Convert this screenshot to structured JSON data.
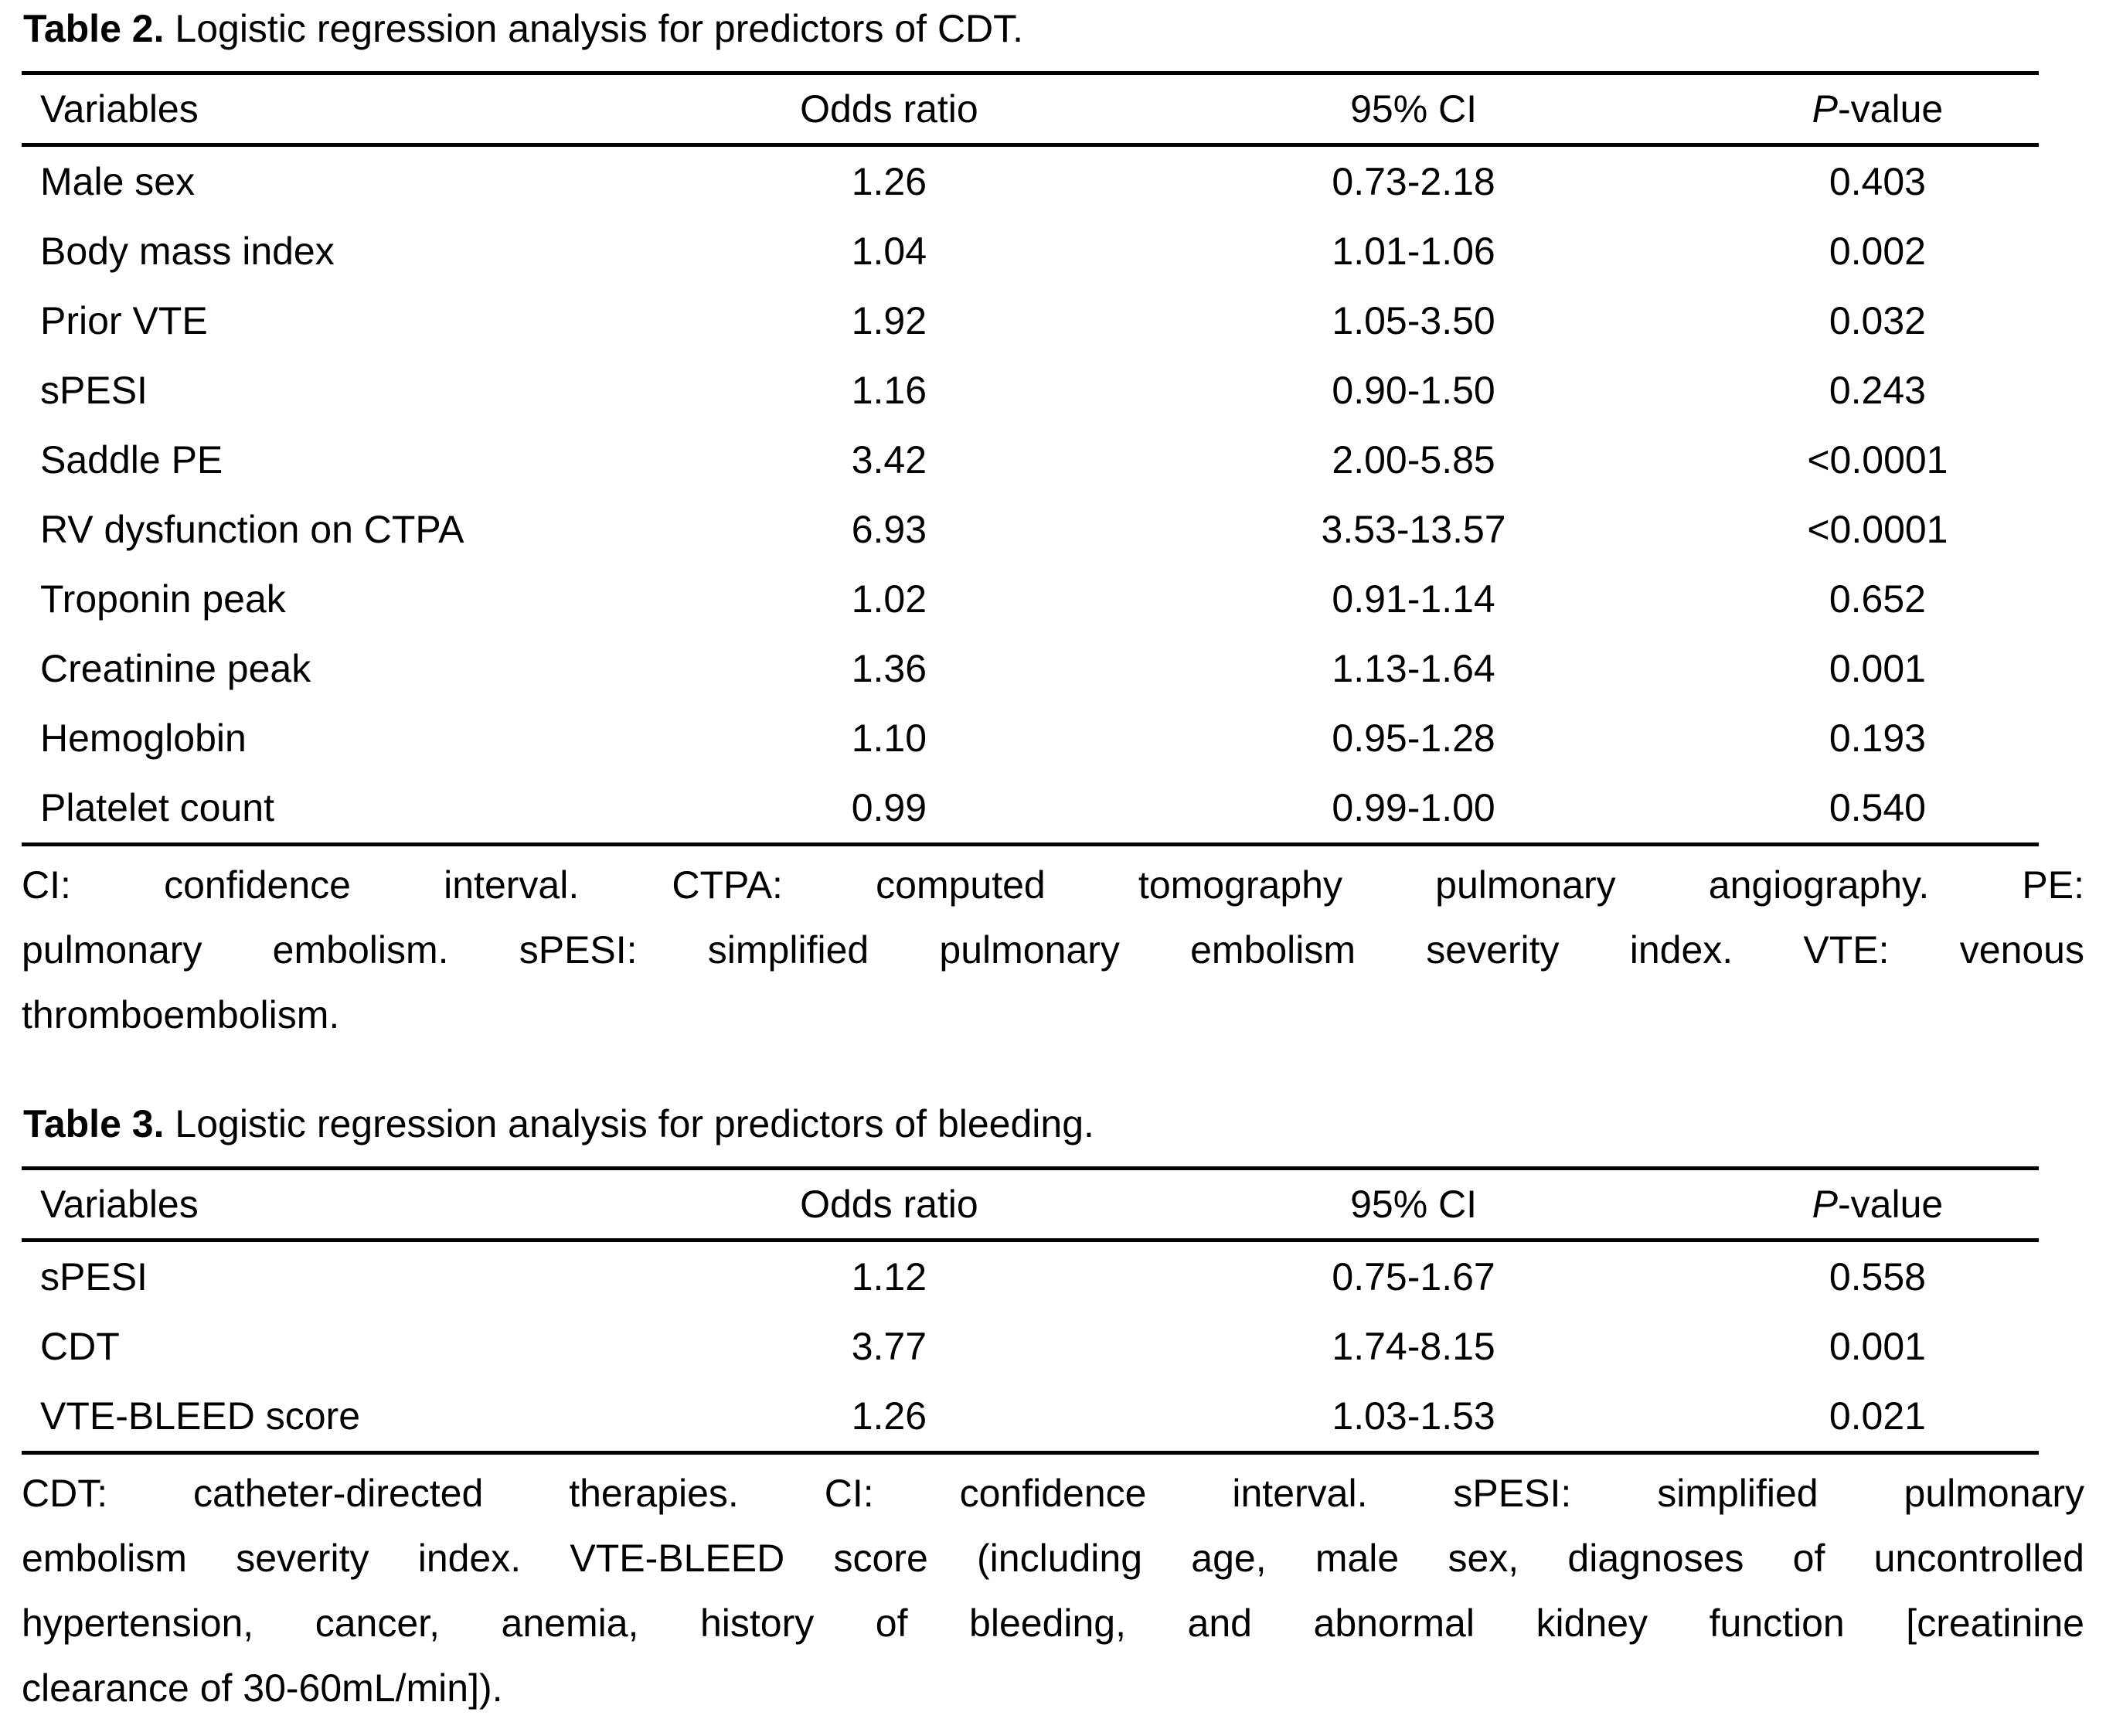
{
  "page": {
    "background_color": "#ffffff",
    "text_color": "#000000"
  },
  "table2": {
    "title_label": "Table 2.",
    "title_text": "Logistic regression analysis for predictors of CDT.",
    "headers": {
      "variables": "Variables",
      "odds_ratio": "Odds ratio",
      "ci": "95% CI",
      "p_prefix": "P",
      "p_suffix": "-value"
    },
    "rows": [
      {
        "variable": "Male sex",
        "odds_ratio": "1.26",
        "ci": "0.73-2.18",
        "p": "0.403"
      },
      {
        "variable": "Body mass index",
        "odds_ratio": "1.04",
        "ci": "1.01-1.06",
        "p": "0.002"
      },
      {
        "variable": "Prior VTE",
        "odds_ratio": "1.92",
        "ci": "1.05-3.50",
        "p": "0.032"
      },
      {
        "variable": "sPESI",
        "odds_ratio": "1.16",
        "ci": "0.90-1.50",
        "p": "0.243"
      },
      {
        "variable": "Saddle PE",
        "odds_ratio": "3.42",
        "ci": "2.00-5.85",
        "p": "<0.0001"
      },
      {
        "variable": "RV dysfunction on CTPA",
        "odds_ratio": "6.93",
        "ci": "3.53-13.57",
        "p": "<0.0001"
      },
      {
        "variable": "Troponin peak",
        "odds_ratio": "1.02",
        "ci": "0.91-1.14",
        "p": "0.652"
      },
      {
        "variable": "Creatinine peak",
        "odds_ratio": "1.36",
        "ci": "1.13-1.64",
        "p": "0.001"
      },
      {
        "variable": "Hemoglobin",
        "odds_ratio": "1.10",
        "ci": "0.95-1.28",
        "p": "0.193"
      },
      {
        "variable": "Platelet count",
        "odds_ratio": "0.99",
        "ci": "0.99-1.00",
        "p": "0.540"
      }
    ],
    "footnote_lines": [
      "CI: confidence interval. CTPA: computed tomography pulmonary angiography. PE:",
      "pulmonary embolism. sPESI: simplified pulmonary embolism severity index. VTE: venous",
      "thromboembolism."
    ]
  },
  "table3": {
    "title_label": "Table 3.",
    "title_text": "Logistic regression analysis for predictors of bleeding.",
    "headers": {
      "variables": "Variables",
      "odds_ratio": "Odds ratio",
      "ci": "95% CI",
      "p_prefix": "P",
      "p_suffix": "-value"
    },
    "rows": [
      {
        "variable": "sPESI",
        "odds_ratio": "1.12",
        "ci": "0.75-1.67",
        "p": "0.558"
      },
      {
        "variable": "CDT",
        "odds_ratio": "3.77",
        "ci": "1.74-8.15",
        "p": "0.001"
      },
      {
        "variable": "VTE-BLEED score",
        "odds_ratio": "1.26",
        "ci": "1.03-1.53",
        "p": "0.021"
      }
    ],
    "footnote_lines": [
      "CDT: catheter-directed therapies. CI: confidence interval. sPESI: simplified pulmonary",
      "embolism severity index. VTE-BLEED score (including age, male sex, diagnoses of uncontrolled",
      "hypertension, cancer, anemia, history of bleeding, and abnormal kidney function [creatinine",
      "clearance of 30-60mL/min])."
    ]
  }
}
